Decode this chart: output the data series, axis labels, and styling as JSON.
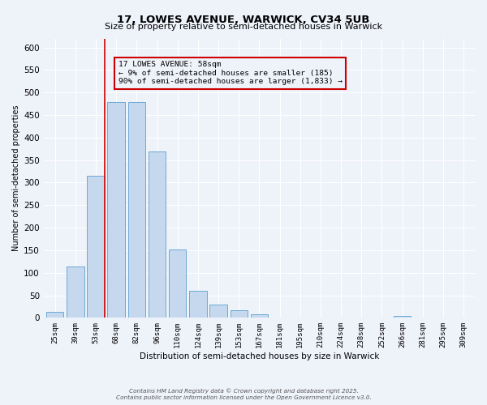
{
  "title": "17, LOWES AVENUE, WARWICK, CV34 5UB",
  "subtitle": "Size of property relative to semi-detached houses in Warwick",
  "xlabel": "Distribution of semi-detached houses by size in Warwick",
  "ylabel": "Number of semi-detached properties",
  "bar_labels": [
    "25sqm",
    "39sqm",
    "53sqm",
    "68sqm",
    "82sqm",
    "96sqm",
    "110sqm",
    "124sqm",
    "139sqm",
    "153sqm",
    "167sqm",
    "181sqm",
    "195sqm",
    "210sqm",
    "224sqm",
    "238sqm",
    "252sqm",
    "266sqm",
    "281sqm",
    "295sqm",
    "309sqm"
  ],
  "bar_values": [
    13,
    113,
    315,
    478,
    478,
    370,
    152,
    60,
    30,
    16,
    8,
    0,
    0,
    0,
    0,
    0,
    0,
    4,
    0,
    0,
    0
  ],
  "bar_color": "#c5d8ee",
  "bar_edge_color": "#6aaad4",
  "ylim": [
    0,
    620
  ],
  "yticks": [
    0,
    50,
    100,
    150,
    200,
    250,
    300,
    350,
    400,
    450,
    500,
    550,
    600
  ],
  "vline_color": "#cc0000",
  "annotation_title": "17 LOWES AVENUE: 58sqm",
  "annotation_line1": "← 9% of semi-detached houses are smaller (185)",
  "annotation_line2": "90% of semi-detached houses are larger (1,833) →",
  "annotation_box_color": "#cc0000",
  "footer_line1": "Contains HM Land Registry data © Crown copyright and database right 2025.",
  "footer_line2": "Contains public sector information licensed under the Open Government Licence v3.0.",
  "bg_color": "#eef2f9",
  "grid_color": "#ffffff"
}
